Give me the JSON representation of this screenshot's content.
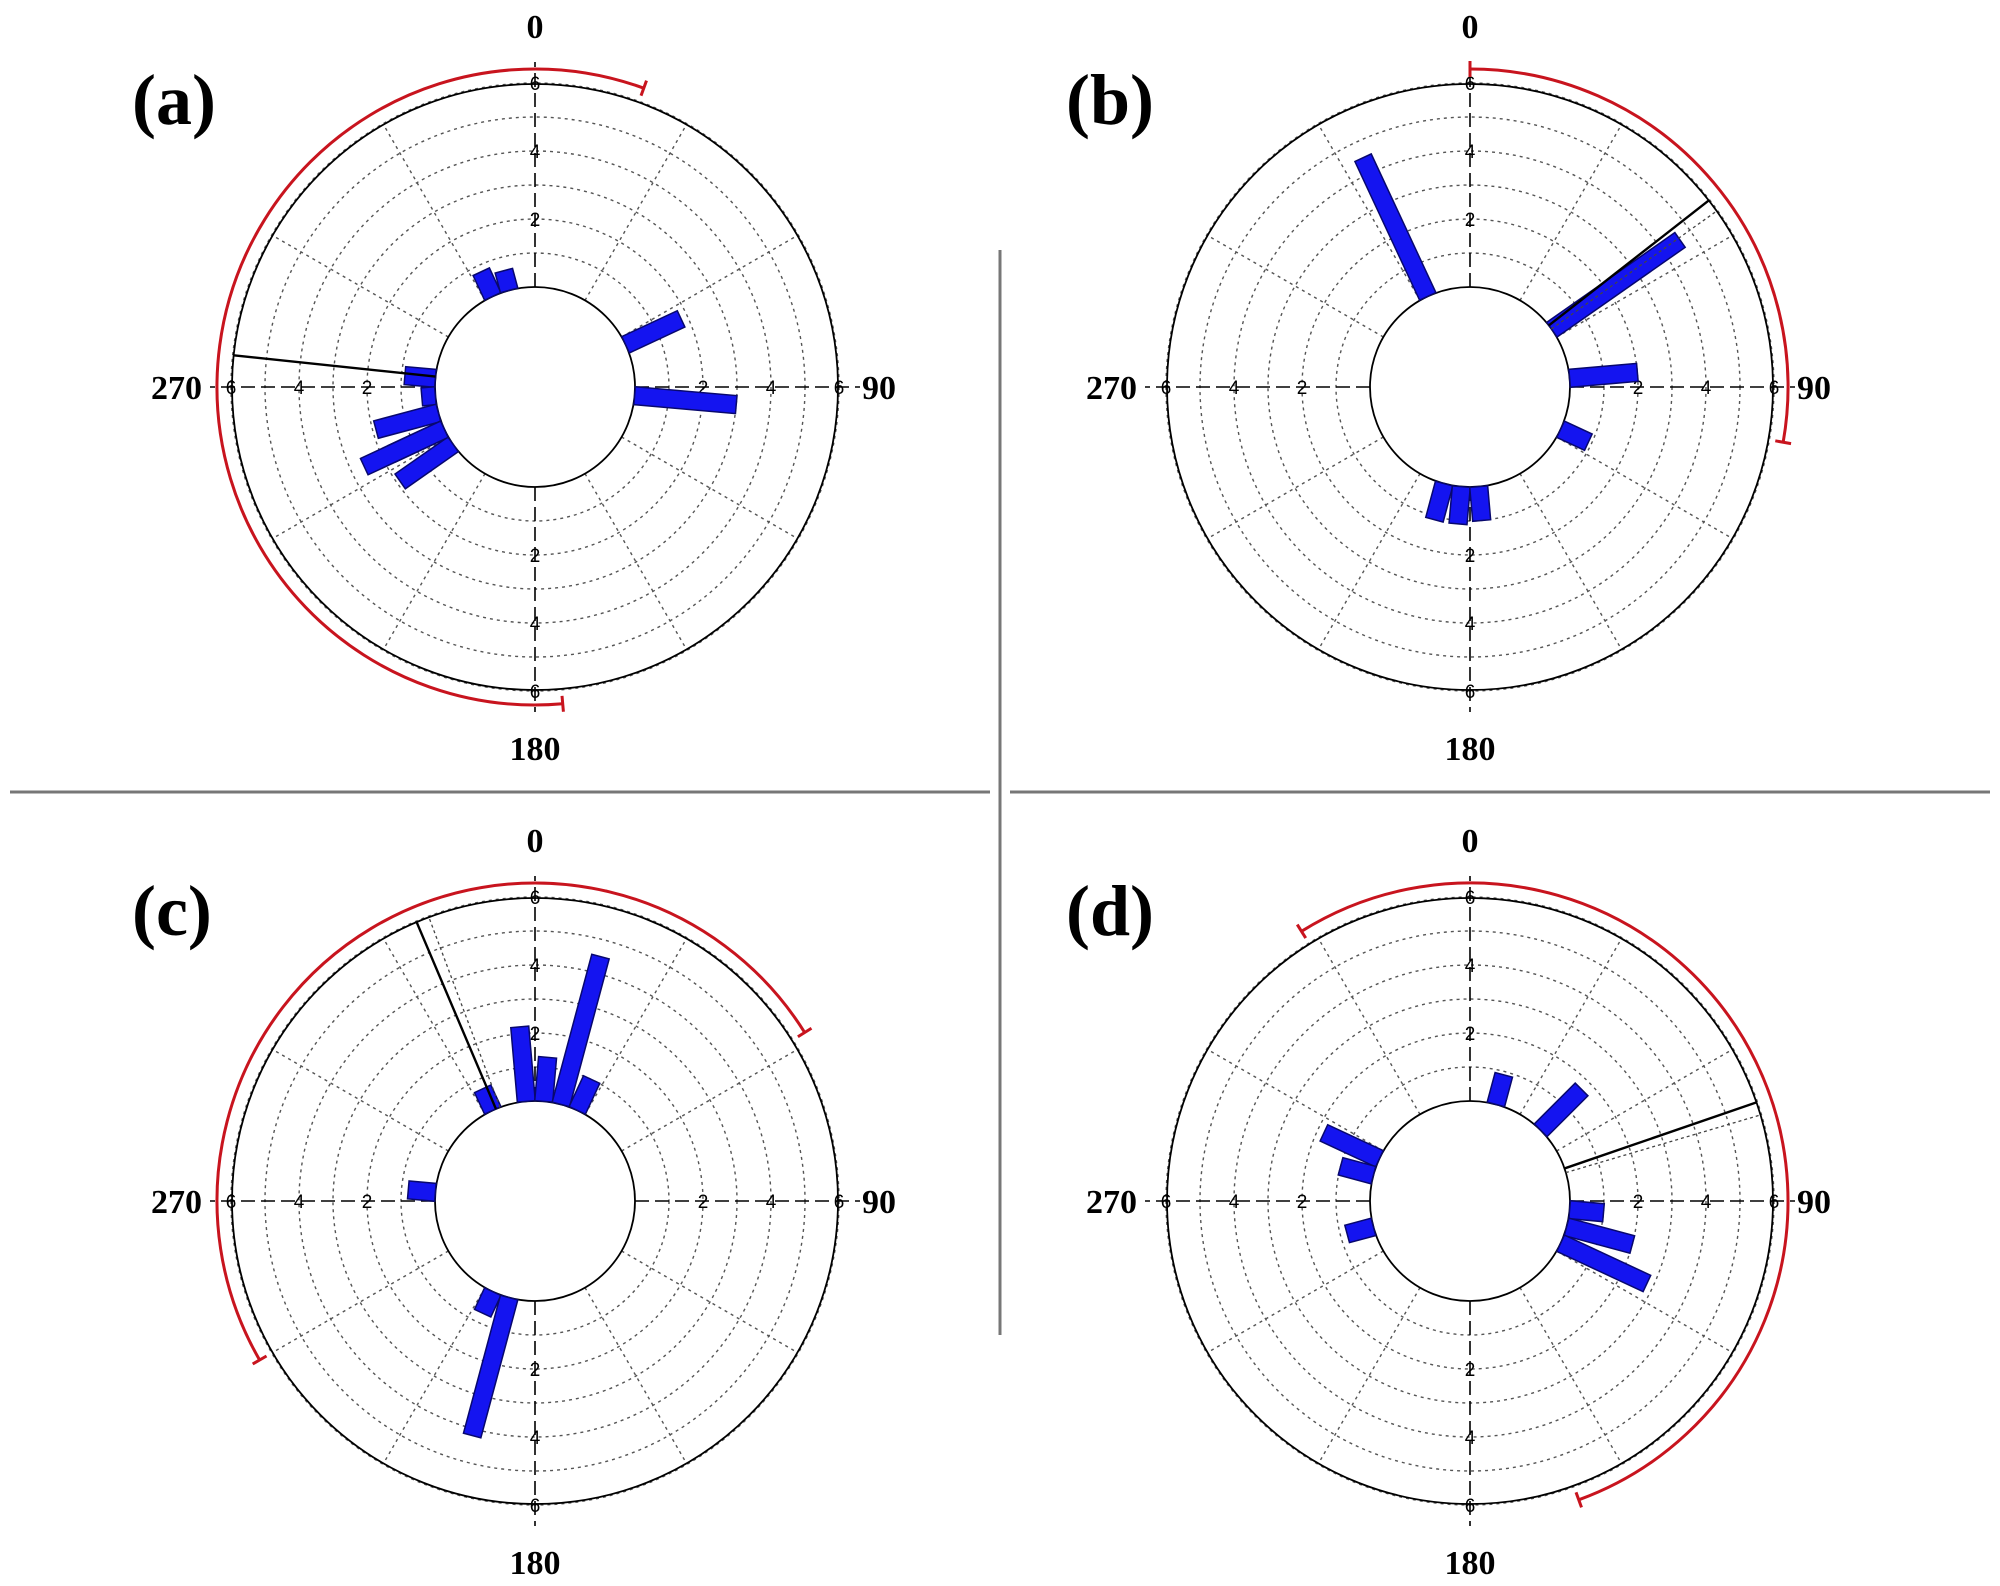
{
  "chart_data": [
    {
      "type": "rose",
      "label": "(a)",
      "compass_labels": [
        "0",
        "90",
        "180",
        "270"
      ],
      "radial_ticks": [
        "2",
        "4",
        "6"
      ],
      "rmax": 7,
      "bin_width_deg": 10,
      "bins": [
        {
          "angle": 335,
          "value": 0.8
        },
        {
          "angle": 345,
          "value": 0.6
        },
        {
          "angle": 65,
          "value": 1.8
        },
        {
          "angle": 95,
          "value": 3.0
        },
        {
          "angle": 275,
          "value": 0.9
        },
        {
          "angle": 265,
          "value": 0.4
        },
        {
          "angle": 255,
          "value": 1.9
        },
        {
          "angle": 245,
          "value": 1.7
        },
        {
          "angle": 235,
          "value": 1.9
        },
        {
          "angle": 245,
          "value": 2.6
        }
      ],
      "mean_direction_deg": 276,
      "arc_deg": [
        175,
        20
      ],
      "mean_line_dashed": false
    },
    {
      "type": "rose",
      "label": "(b)",
      "compass_labels": [
        "0",
        "90",
        "180",
        "270"
      ],
      "radial_ticks": [
        "2",
        "4",
        "6"
      ],
      "rmax": 7,
      "bin_width_deg": 10,
      "bins": [
        {
          "angle": 335,
          "value": 4.5
        },
        {
          "angle": 55,
          "value": 4.6
        },
        {
          "angle": 85,
          "value": 2.0
        },
        {
          "angle": 115,
          "value": 0.9
        },
        {
          "angle": 195,
          "value": 1.1
        },
        {
          "angle": 185,
          "value": 1.1
        },
        {
          "angle": 175,
          "value": 1.0
        }
      ],
      "mean_direction_deg": 52,
      "arc_deg": [
        0,
        100
      ],
      "mean_line_dashed": true
    },
    {
      "type": "rose",
      "label": "(c)",
      "compass_labels": [
        "0",
        "90",
        "180",
        "270"
      ],
      "radial_ticks": [
        "2",
        "4",
        "6"
      ],
      "rmax": 7,
      "bin_width_deg": 10,
      "bins": [
        {
          "angle": 355,
          "value": 2.2
        },
        {
          "angle": 5,
          "value": 1.3
        },
        {
          "angle": 15,
          "value": 4.5
        },
        {
          "angle": 25,
          "value": 1.0
        },
        {
          "angle": 335,
          "value": 0.7
        },
        {
          "angle": 275,
          "value": 0.8
        },
        {
          "angle": 205,
          "value": 0.7
        },
        {
          "angle": 195,
          "value": 4.2
        }
      ],
      "mean_direction_deg": 337,
      "arc_deg": [
        240,
        58
      ],
      "mean_line_dashed": true
    },
    {
      "type": "rose",
      "label": "(d)",
      "compass_labels": [
        "0",
        "90",
        "180",
        "270"
      ],
      "radial_ticks": [
        "2",
        "4",
        "6"
      ],
      "rmax": 7,
      "bin_width_deg": 10,
      "bins": [
        {
          "angle": 15,
          "value": 0.9
        },
        {
          "angle": 45,
          "value": 1.7
        },
        {
          "angle": 95,
          "value": 1.0
        },
        {
          "angle": 105,
          "value": 2.0
        },
        {
          "angle": 115,
          "value": 2.8
        },
        {
          "angle": 295,
          "value": 1.8
        },
        {
          "angle": 285,
          "value": 1.0
        },
        {
          "angle": 255,
          "value": 0.8
        }
      ],
      "mean_direction_deg": 71,
      "arc_deg": [
        328,
        160
      ],
      "mean_line_dashed": true
    }
  ],
  "colors": {
    "bar": "#1414f0",
    "bar_stroke": "#08086e",
    "arc": "#c8141e",
    "mean_line": "#000000",
    "circle": "#000000",
    "grid": "#555555",
    "divider": "#777777"
  }
}
